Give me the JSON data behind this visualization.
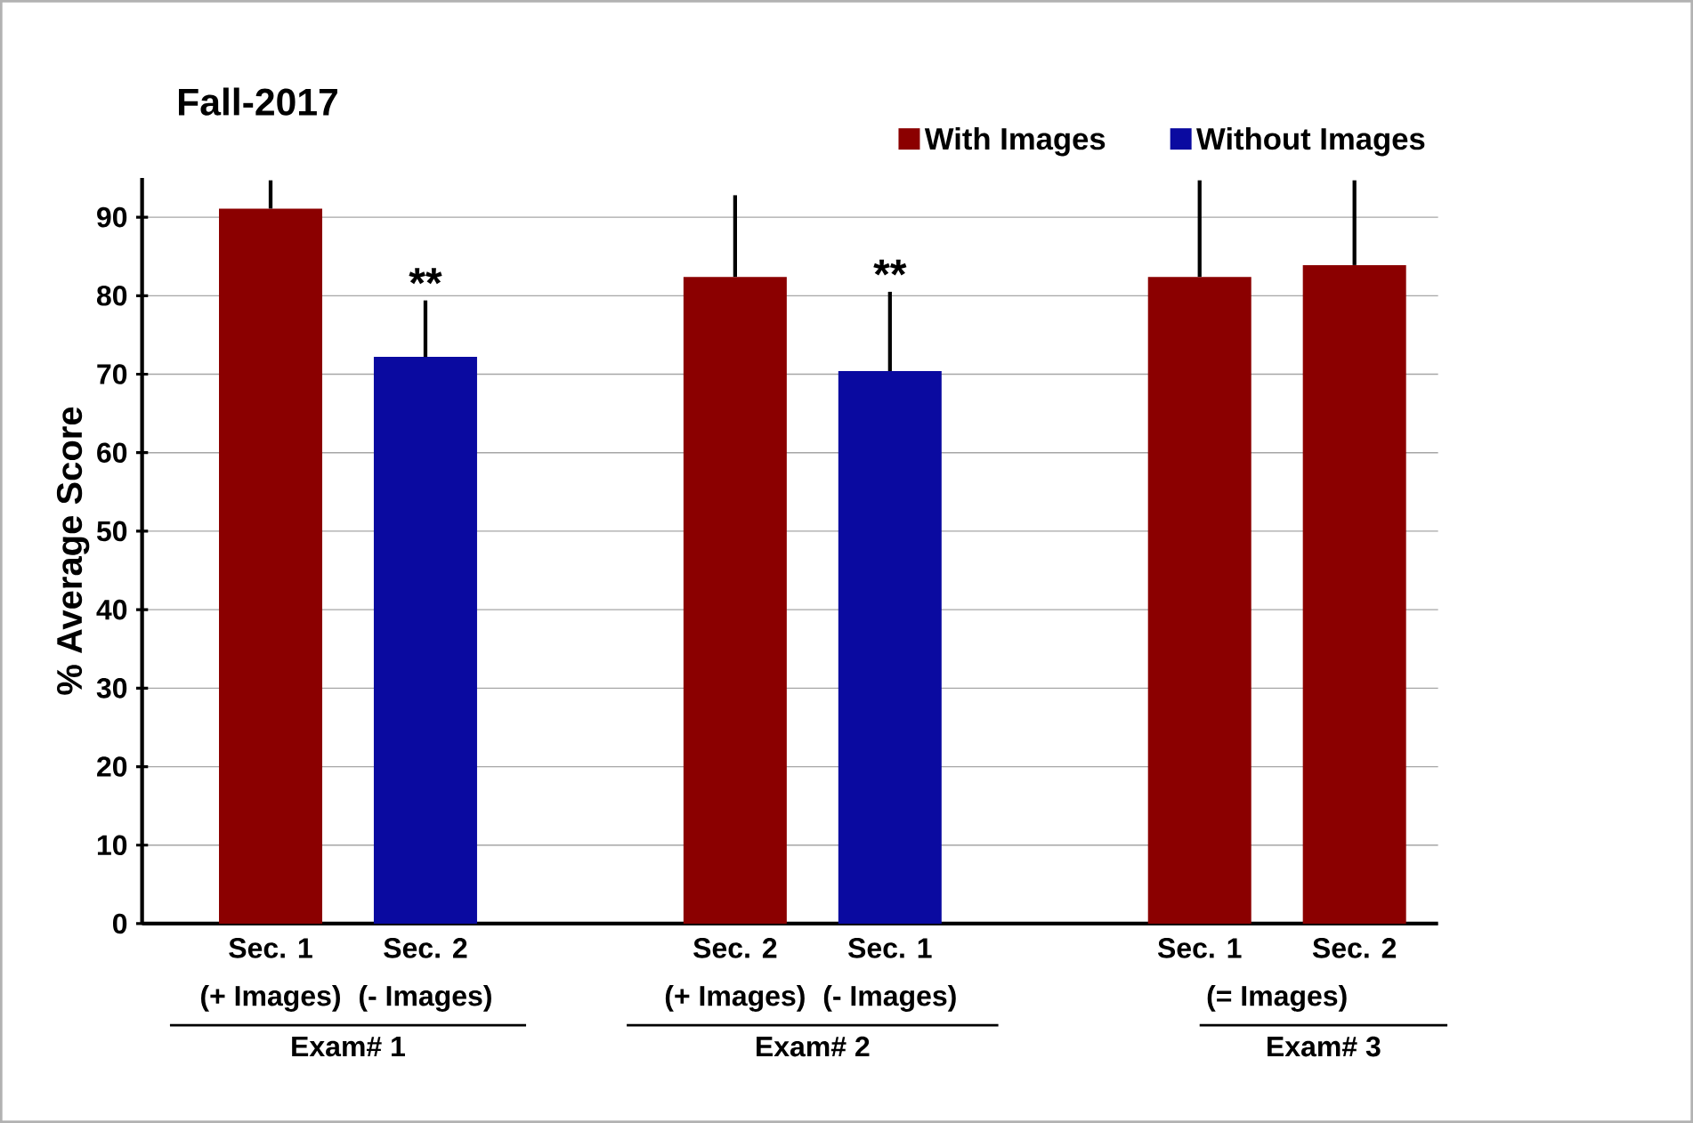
{
  "chart_data": {
    "type": "bar",
    "title": "Fall-2017",
    "ylabel": "% Average Score",
    "categories": [
      "Sec. 1",
      "Sec. 2",
      null,
      "Sec. 2",
      "Sec. 1",
      null,
      "Sec. 1",
      "Sec. 2"
    ],
    "series": [
      {
        "name": "With Images",
        "color": "#8b0000",
        "values": [
          91.1,
          null,
          null,
          82.4,
          null,
          null,
          82.4,
          83.9
        ],
        "errors": [
          [
            91.1,
            94.7
          ],
          null,
          null,
          [
            82.4,
            92.8
          ],
          null,
          null,
          [
            82.4,
            94.7
          ],
          [
            83.9,
            94.7
          ]
        ]
      },
      {
        "name": "Without Images",
        "color": "#0a0aa0",
        "values": [
          null,
          72.2,
          null,
          null,
          70.4,
          null,
          null,
          null
        ],
        "errors": [
          null,
          [
            72.2,
            79.4
          ],
          null,
          null,
          [
            70.4,
            80.5
          ],
          null,
          null,
          null
        ]
      }
    ],
    "ylim": [
      0,
      95
    ],
    "yticks": [
      0,
      10,
      20,
      30,
      40,
      50,
      60,
      70,
      80,
      90
    ],
    "grid": "y",
    "legend": "top right",
    "annotations": [
      "(+ Images)",
      "(- Images)",
      "(+ Images)",
      "(- Images)",
      "(= Images)",
      "Exam# 1",
      "Exam# 2",
      "Exam# 3",
      "**",
      "**"
    ]
  }
}
